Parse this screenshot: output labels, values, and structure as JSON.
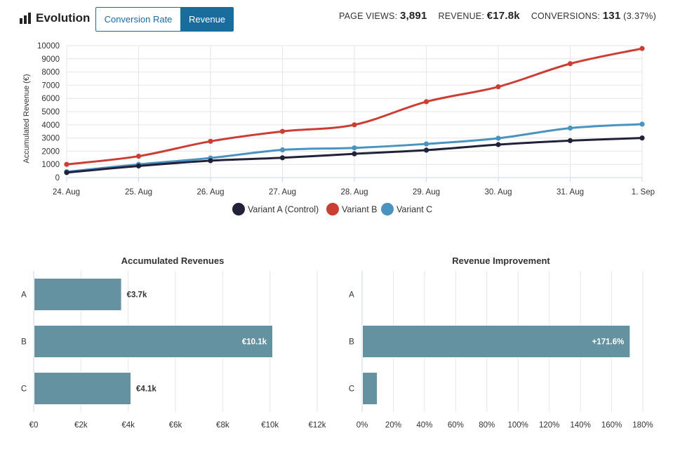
{
  "header": {
    "title": "Evolution",
    "tabs": [
      {
        "label": "Conversion Rate",
        "active": false
      },
      {
        "label": "Revenue",
        "active": true
      }
    ],
    "stats": [
      {
        "label": "PAGE VIEWS:",
        "value": "3,891",
        "extra": ""
      },
      {
        "label": "REVENUE:",
        "value": "€17.8k",
        "extra": ""
      },
      {
        "label": "CONVERSIONS:",
        "value": "131",
        "extra": "(3.37%)"
      }
    ]
  },
  "chart_data": [
    {
      "type": "line",
      "title": "",
      "xlabel": "",
      "ylabel": "Accumulated Revenue (€)",
      "categories": [
        "24. Aug",
        "25. Aug",
        "26. Aug",
        "27. Aug",
        "28. Aug",
        "29. Aug",
        "30. Aug",
        "31. Aug",
        "1. Sep"
      ],
      "yticks": [
        "0",
        "1000",
        "2000",
        "3000",
        "4000",
        "5000",
        "6000",
        "7000",
        "8000",
        "9000",
        "10000"
      ],
      "ylim": [
        0,
        10000
      ],
      "grid": true,
      "legend": "bottom",
      "series": [
        {
          "name": "Variant A (Control)",
          "color": "#22213a",
          "values": [
            380,
            880,
            1280,
            1500,
            1800,
            2080,
            2500,
            2800,
            3000
          ]
        },
        {
          "name": "Variant B",
          "color": "#cc3e34",
          "values": [
            1000,
            1620,
            2750,
            3500,
            4000,
            5750,
            6880,
            8630,
            9780
          ]
        },
        {
          "name": "Variant C",
          "color": "#4a93c0",
          "values": [
            440,
            1000,
            1480,
            2100,
            2250,
            2550,
            2980,
            3750,
            4050
          ]
        }
      ]
    },
    {
      "type": "bar",
      "orientation": "horizontal",
      "title": "Accumulated Revenues",
      "categories": [
        "A",
        "B",
        "C"
      ],
      "values": [
        3700,
        10100,
        4100
      ],
      "labels": [
        "€3.7k",
        "€10.1k",
        "€4.1k"
      ],
      "xticks": [
        "€0",
        "€2k",
        "€4k",
        "€6k",
        "€8k",
        "€10k",
        "€12k"
      ],
      "xlim": [
        0,
        12000
      ],
      "color": "#6492a0"
    },
    {
      "type": "bar",
      "orientation": "horizontal",
      "title": "Revenue Improvement",
      "categories": [
        "A",
        "B",
        "C"
      ],
      "values": [
        0,
        171.6,
        9.5
      ],
      "labels": [
        "",
        "+171.6%",
        ""
      ],
      "xticks": [
        "0%",
        "20%",
        "40%",
        "60%",
        "80%",
        "100%",
        "120%",
        "140%",
        "160%",
        "180%"
      ],
      "xlim": [
        0,
        180
      ],
      "color": "#6492a0"
    }
  ]
}
